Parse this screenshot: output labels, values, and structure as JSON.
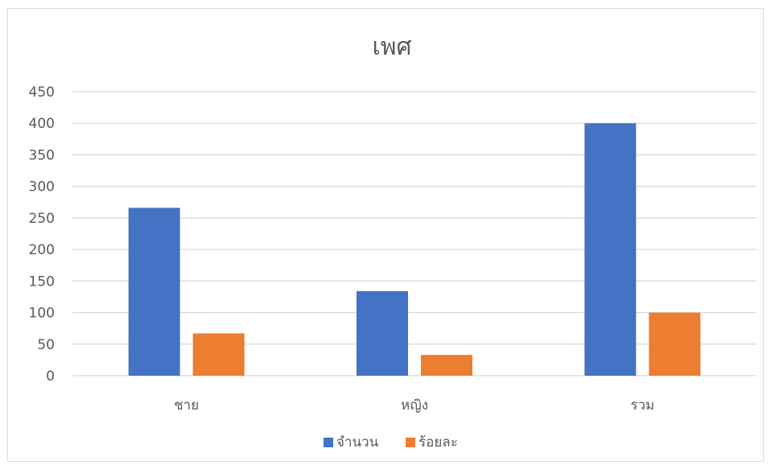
{
  "chart_data": {
    "type": "bar",
    "title": "เพศ",
    "categories": [
      "ชาย",
      "หญิง",
      "รวม"
    ],
    "series": [
      {
        "name": "จำนวน",
        "values": [
          266,
          134,
          400
        ],
        "color": "#4472c4"
      },
      {
        "name": "ร้อยละ",
        "values": [
          67,
          33,
          100
        ],
        "color": "#ed7d31"
      }
    ],
    "ylim": [
      0,
      450
    ],
    "yticks": [
      0,
      50,
      100,
      150,
      200,
      250,
      300,
      350,
      400,
      450
    ],
    "grid": true,
    "legend_position": "bottom",
    "gridline_color": "#d9d9d9",
    "axis_color": "#d9d9d9"
  }
}
